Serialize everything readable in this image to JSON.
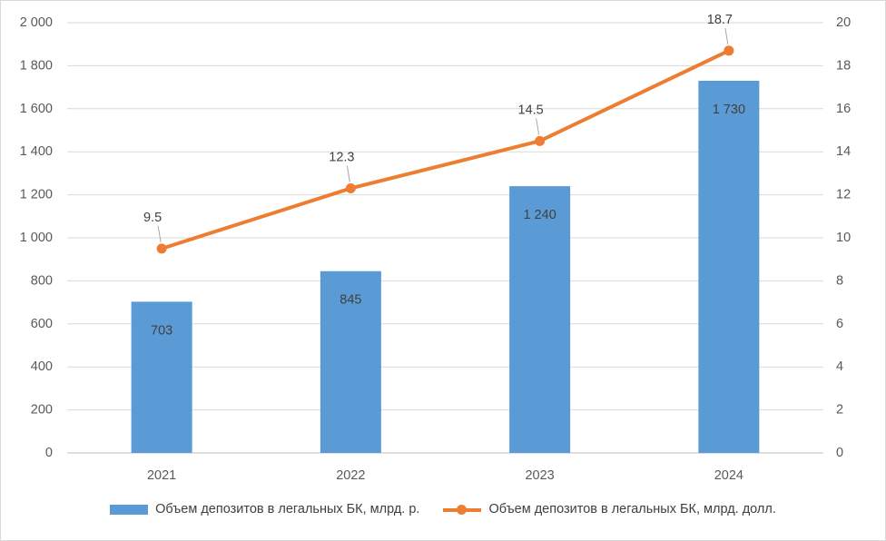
{
  "chart_data": {
    "type": "bar",
    "categories": [
      "2021",
      "2022",
      "2023",
      "2024"
    ],
    "series": [
      {
        "name": "Объем депозитов в легальных БК, млрд. р.",
        "type": "bar",
        "axis": "left",
        "values": [
          703,
          845,
          1240,
          1730
        ],
        "labels": [
          "703",
          "845",
          "1 240",
          "1 730"
        ],
        "color": "#5b9bd5"
      },
      {
        "name": "Объем депозитов в легальных БК, млрд. долл.",
        "type": "line",
        "axis": "right",
        "values": [
          9.5,
          12.3,
          14.5,
          18.7
        ],
        "labels": [
          "9.5",
          "12.3",
          "14.5",
          "18.7"
        ],
        "color": "#ed7d31"
      }
    ],
    "y_left": {
      "ylim": [
        0,
        2000
      ],
      "ticks": [
        0,
        200,
        400,
        600,
        800,
        1000,
        1200,
        1400,
        1600,
        1800,
        2000
      ],
      "tick_labels": [
        "0",
        "200",
        "400",
        "600",
        "800",
        "1 000",
        "1 200",
        "1 400",
        "1 600",
        "1 800",
        "2 000"
      ]
    },
    "y_right": {
      "ylim": [
        0,
        20
      ],
      "ticks": [
        0,
        2,
        4,
        6,
        8,
        10,
        12,
        14,
        16,
        18,
        20
      ],
      "tick_labels": [
        "0",
        "2",
        "4",
        "6",
        "8",
        "10",
        "12",
        "14",
        "16",
        "18",
        "20"
      ]
    },
    "grid": true,
    "legend_position": "bottom",
    "title": "",
    "xlabel": "",
    "ylabel": ""
  }
}
